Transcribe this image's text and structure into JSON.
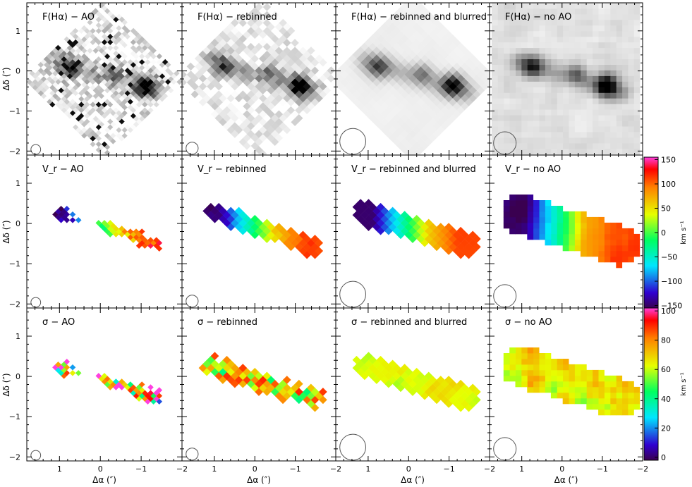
{
  "figure": {
    "xlabel": "Δα (″)",
    "ylabel": "Δδ (″)",
    "x_ticks": [
      "1",
      "0",
      "−1",
      "−2"
    ],
    "y_ticks": [
      "1",
      "0",
      "−1",
      "−2"
    ],
    "rows": [
      {
        "id": "flux",
        "titles": [
          "F(Hα) − AO",
          "F(Hα) − rebinned",
          "F(Hα) − rebinned and blurred",
          "F(Hα) − no AO"
        ],
        "colormap": "grayscale-inverted"
      },
      {
        "id": "velocity",
        "titles": [
          "V_r − AO",
          "V_r − rebinned",
          "V_r − rebinned and blurred",
          "V_r − no AO"
        ],
        "colormap": "rainbow",
        "colorbar": {
          "label": "km s⁻¹",
          "ticks": [
            "−150",
            "−100",
            "−50",
            "0",
            "50",
            "100",
            "150"
          ],
          "range": [
            -155,
            155
          ]
        }
      },
      {
        "id": "dispersion",
        "titles": [
          "σ − AO",
          "σ − rebinned",
          "σ − rebinned and blurred",
          "σ − no AO"
        ],
        "colormap": "rainbow",
        "colorbar": {
          "label": "km s⁻¹",
          "ticks": [
            "0",
            "20",
            "40",
            "60",
            "80",
            "100"
          ],
          "range": [
            -2,
            102
          ]
        }
      }
    ]
  },
  "chart_data": {
    "type": "heatmap",
    "layout": "3 rows × 4 columns of maps",
    "columns": [
      "AO",
      "rebinned",
      "rebinned and blurred",
      "no AO"
    ],
    "xlabel": "Δα (″)",
    "ylabel": "Δδ (″)",
    "xlim": [
      1.8,
      -2.0
    ],
    "ylim": [
      -2.1,
      1.7
    ],
    "colorbars": [
      {
        "quantity": "V_r",
        "unit": "km s⁻¹",
        "range": [
          -150,
          150
        ]
      },
      {
        "quantity": "σ",
        "unit": "km s⁻¹",
        "range": [
          0,
          100
        ]
      }
    ],
    "velocity_field_estimate": {
      "position_offset_arcsec": [
        0.9,
        0.0,
        -0.5,
        -1.2
      ],
      "v_r": [
        -150,
        -20,
        60,
        110
      ]
    },
    "dispersion_estimate_range": [
      40,
      90
    ]
  }
}
